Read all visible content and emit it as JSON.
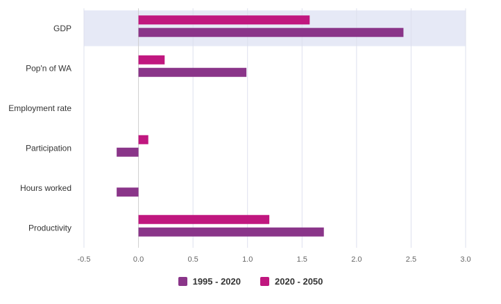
{
  "chart_data": {
    "type": "bar",
    "orientation": "horizontal",
    "categories": [
      "GDP",
      "Pop'n of WA",
      "Employment rate",
      "Participation",
      "Hours worked",
      "Productivity"
    ],
    "series": [
      {
        "name": "2020 - 2050",
        "color": "#c0177f",
        "values": [
          1.57,
          0.24,
          0.0,
          0.09,
          0.0,
          1.2
        ]
      },
      {
        "name": "1995 - 2020",
        "color": "#8a3589",
        "values": [
          2.43,
          0.99,
          0.0,
          -0.2,
          -0.2,
          1.7
        ]
      }
    ],
    "xlim": [
      -0.5,
      3.0
    ],
    "xticks": [
      -0.5,
      0.0,
      0.5,
      1.0,
      1.5,
      2.0,
      2.5,
      3.0
    ],
    "xtick_labels": [
      "-0.5",
      "0.0",
      "0.5",
      "1.0",
      "1.5",
      "2.0",
      "2.5",
      "3.0"
    ],
    "highlighted_category": "GDP",
    "grid": true,
    "legend_position": "bottom",
    "title": "",
    "xlabel": "",
    "ylabel": ""
  },
  "legend": {
    "items": [
      {
        "label": "1995 - 2020",
        "color": "#8a3589"
      },
      {
        "label": "2020 - 2050",
        "color": "#c0177f"
      }
    ]
  }
}
